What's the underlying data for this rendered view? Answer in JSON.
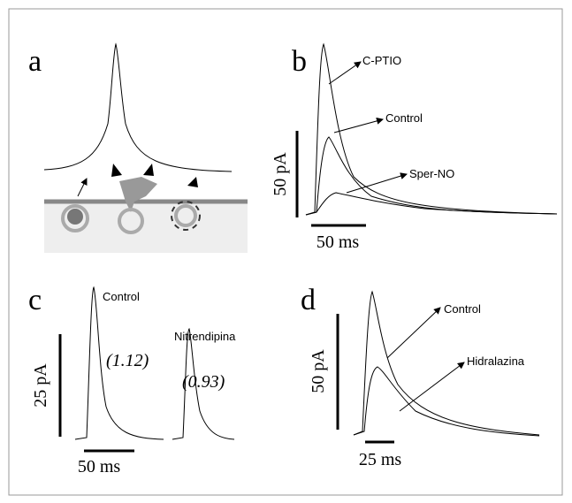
{
  "panels": [
    {
      "label": "a"
    },
    {
      "label": "b",
      "scale_y": "50 pA",
      "scale_x": "50 ms",
      "traces": [
        "C-PTIO",
        "Control",
        "Sper-NO"
      ]
    },
    {
      "label": "c",
      "scale_y": "25 pA",
      "scale_x": "50 ms",
      "traces": [
        {
          "name": "Control",
          "ratio": "(1.12)"
        },
        {
          "name": "Nitrendipina",
          "ratio": "(0.93)"
        }
      ]
    },
    {
      "label": "d",
      "scale_y": "50 pA",
      "scale_x": "25 ms",
      "traces": [
        "Control",
        "Hidralazina"
      ]
    }
  ]
}
